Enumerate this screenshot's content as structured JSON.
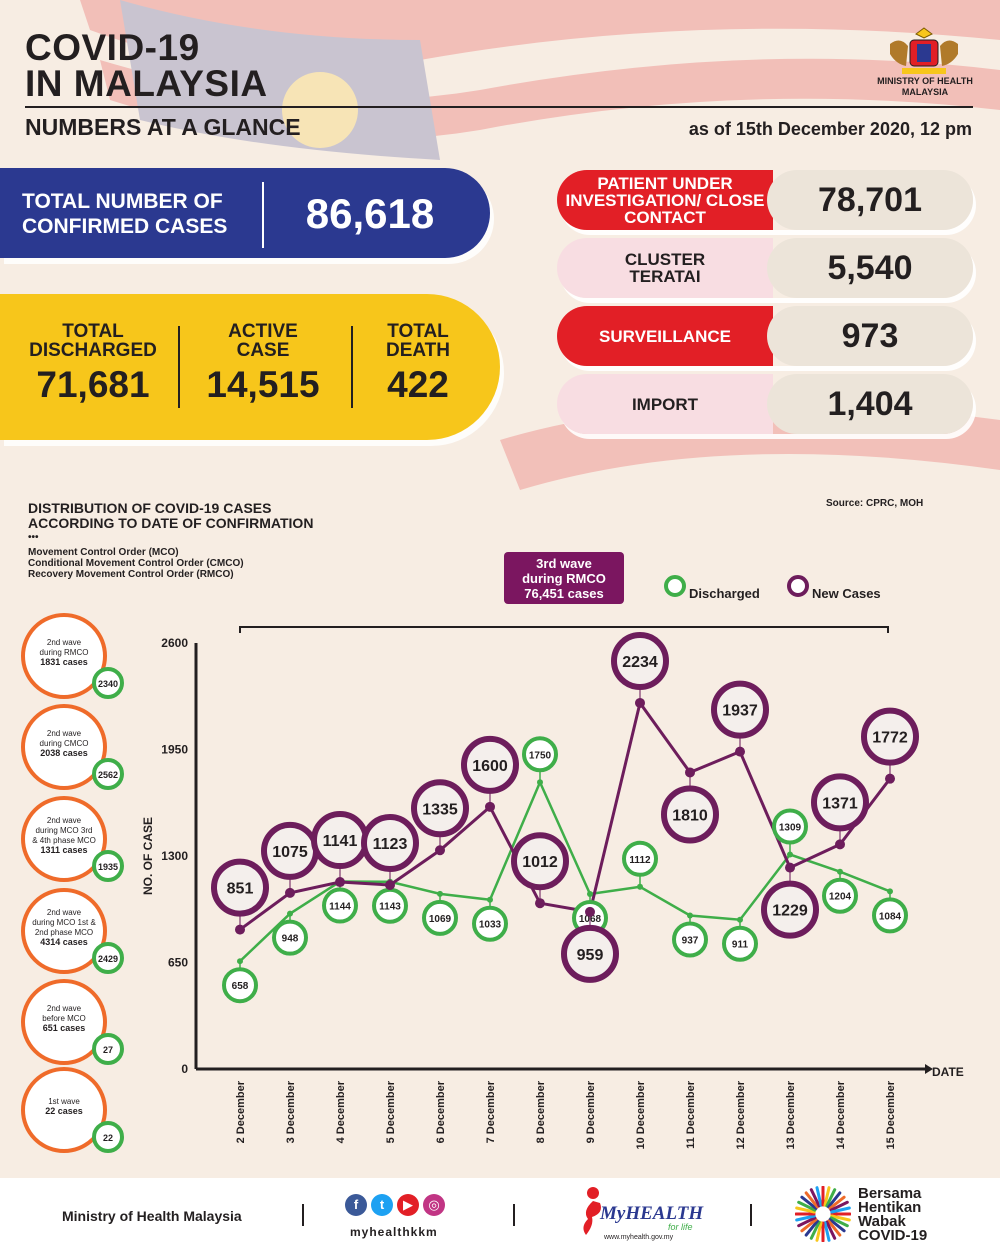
{
  "header": {
    "title_line1": "COVID-19",
    "title_line2": "IN MALAYSIA",
    "subtitle": "NUMBERS AT A GLANCE",
    "as_of": "as of 15th December 2020, 12 pm",
    "ministry_line1": "MINISTRY OF HEALTH",
    "ministry_line2": "MALAYSIA"
  },
  "total_confirmed": {
    "label_line1": "TOTAL NUMBER OF",
    "label_line2": "CONFIRMED CASES",
    "value": "86,618"
  },
  "summary": [
    {
      "label_line1": "TOTAL",
      "label_line2": "DISCHARGED",
      "value": "71,681"
    },
    {
      "label_line1": "ACTIVE",
      "label_line2": "CASE",
      "value": "14,515"
    },
    {
      "label_line1": "TOTAL",
      "label_line2": "DEATH",
      "value": "422"
    }
  ],
  "categories": [
    {
      "label": "PATIENT UNDER INVESTIGATION/ CLOSE CONTACT",
      "value": "78,701"
    },
    {
      "label": "CLUSTER TERATAI",
      "value": "5,540"
    },
    {
      "label": "SURVEILLANCE",
      "value": "973"
    },
    {
      "label": "IMPORT",
      "value": "1,404"
    }
  ],
  "colors": {
    "blue": "#2b3990",
    "yellow": "#f7c61b",
    "red": "#e21f26",
    "discharged": "#3fae49",
    "new_cases": "#6d1d5c",
    "wave_circle": "#ef6b2a"
  },
  "chart_section": {
    "title_line1": "DISTRIBUTION OF COVID-19 CASES",
    "title_line2": "ACCORDING TO DATE OF CONFIRMATION",
    "dots": "•••",
    "mco_line1": "Movement Control Order (MCO)",
    "mco_line2": "Conditional Movement Control Order (CMCO)",
    "mco_line3": "Recovery Movement Control Order (RMCO)",
    "source": "Source: CPRC, MOH",
    "wave_box": {
      "line1": "3rd wave",
      "line2": "during RMCO",
      "line3": "76,451 cases"
    }
  },
  "waves": [
    {
      "line1": "2nd wave",
      "line2": "during RMCO",
      "line3": "1831 cases",
      "discharged": "2340"
    },
    {
      "line1": "2nd wave",
      "line2": "during CMCO",
      "line3": "2038 cases",
      "discharged": "2562"
    },
    {
      "line1": "2nd wave",
      "line2": "during MCO 3rd",
      "line3": "& 4th phase MCO",
      "line4": "1311 cases",
      "discharged": "1935"
    },
    {
      "line1": "2nd wave",
      "line2": "during MCO 1st &",
      "line3": "2nd phase MCO",
      "line4": "4314 cases",
      "discharged": "2429"
    },
    {
      "line1": "2nd wave",
      "line2": "before MCO",
      "line3": "651 cases",
      "discharged": "27"
    },
    {
      "line1": "1st wave",
      "line2": "22 cases",
      "discharged": "22"
    }
  ],
  "chart_data": {
    "type": "line",
    "categories": [
      "2 December",
      "3 December",
      "4 December",
      "5 December",
      "6 December",
      "7 December",
      "8 December",
      "9 December",
      "10 December",
      "11 December",
      "12 December",
      "13 December",
      "14 December",
      "15 December"
    ],
    "series": [
      {
        "name": "Discharged",
        "values": [
          658,
          948,
          1144,
          1143,
          1069,
          1033,
          1750,
          1068,
          1112,
          937,
          911,
          1309,
          1204,
          1084
        ]
      },
      {
        "name": "New Cases",
        "values": [
          851,
          1075,
          1141,
          1123,
          1335,
          1600,
          1012,
          959,
          2234,
          1810,
          1937,
          1229,
          1371,
          1772
        ]
      }
    ],
    "ylabel": "NO. OF CASE",
    "xlabel": "DATE",
    "ylim": [
      0,
      2600
    ],
    "yticks": [
      0,
      650,
      1300,
      1950,
      2600
    ],
    "legend": [
      "Discharged",
      "New Cases"
    ]
  },
  "footer": {
    "ministry": "Ministry of Health Malaysia",
    "handle": "myhealthkkm",
    "myhealth": "MyHEALTH",
    "myhealth_tag": "for life",
    "myhealth_url": "www.myhealth.gov.my",
    "campaign_line1": "Bersama",
    "campaign_line2": "Hentikan",
    "campaign_line3": "Wabak",
    "campaign_line4": "COVID-19"
  }
}
